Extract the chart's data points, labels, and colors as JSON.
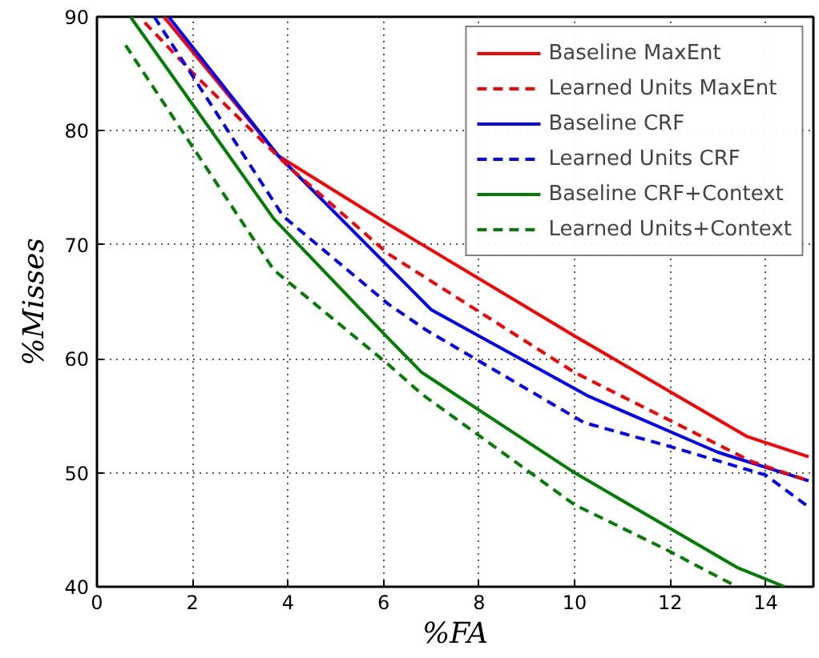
{
  "chart_data": {
    "type": "line",
    "xlabel": "%FA",
    "ylabel": "%Misses",
    "xlim": [
      0,
      15
    ],
    "ylim": [
      40,
      90
    ],
    "xticks": [
      0,
      2,
      4,
      6,
      8,
      10,
      12,
      14
    ],
    "yticks": [
      40,
      50,
      60,
      70,
      80,
      90
    ],
    "grid": true,
    "legend": "top right",
    "series": [
      {
        "name": "Baseline MaxEnt",
        "color": "#ff0000",
        "line_style": "solid",
        "x": [
          1.4,
          3.8,
          6.1,
          10.0,
          13.6,
          14.9
        ],
        "values": [
          90,
          77.8,
          71.8,
          62.0,
          53.2,
          51.4
        ]
      },
      {
        "name": "Learned Units MaxEnt",
        "color": "#ff0000",
        "line_style": "dashed",
        "x": [
          1.0,
          2.0,
          4.0,
          6.1,
          10.0,
          13.7,
          14.9
        ],
        "values": [
          89.5,
          85.1,
          76.9,
          69.2,
          58.8,
          51.0,
          49.3
        ]
      },
      {
        "name": "Baseline CRF",
        "color": "#0000ff",
        "line_style": "solid",
        "x": [
          1.5,
          3.8,
          6.1,
          7.0,
          10.3,
          13.0,
          14.9
        ],
        "values": [
          90,
          77.8,
          68.1,
          64.3,
          56.7,
          51.8,
          49.3
        ]
      },
      {
        "name": "Learned Units CRF",
        "color": "#0000ff",
        "line_style": "dashed",
        "x": [
          1.2,
          3.9,
          6.1,
          6.9,
          10.2,
          12.0,
          14.0,
          14.9
        ],
        "values": [
          90,
          72.5,
          64.8,
          62.5,
          54.4,
          52.3,
          49.8,
          47.0
        ]
      },
      {
        "name": "Baseline CRF+Context",
        "color": "#008000",
        "line_style": "solid",
        "x": [
          0.7,
          3.7,
          6.1,
          6.8,
          10.0,
          13.4,
          14.4
        ],
        "values": [
          90,
          72.3,
          61.8,
          58.8,
          50.0,
          41.7,
          40
        ]
      },
      {
        "name": "Learned Units+Context",
        "color": "#008000",
        "line_style": "dashed",
        "x": [
          0.6,
          3.7,
          6.1,
          6.8,
          10.0,
          11.9,
          13.4
        ],
        "values": [
          87.5,
          67.8,
          59.5,
          56.9,
          47.2,
          43.3,
          40
        ]
      }
    ]
  }
}
